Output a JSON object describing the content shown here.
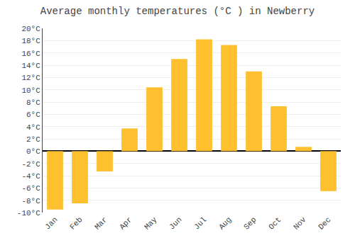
{
  "chart_data": {
    "type": "bar",
    "title": "Average monthly temperatures (°C ) in Newberry",
    "categories": [
      "Jan",
      "Feb",
      "Mar",
      "Apr",
      "May",
      "Jun",
      "Jul",
      "Aug",
      "Sep",
      "Oct",
      "Nov",
      "Dec"
    ],
    "values": [
      -9.5,
      -8.5,
      -3.3,
      3.7,
      10.4,
      15.0,
      18.2,
      17.3,
      13.0,
      7.3,
      0.7,
      -6.5
    ],
    "color": "#FFC030",
    "ylim": [
      -10,
      20
    ],
    "yticks": [
      {
        "value": -10,
        "label": "-10°C"
      },
      {
        "value": -8,
        "label": "-8°C"
      },
      {
        "value": -6,
        "label": "-6°C"
      },
      {
        "value": -4,
        "label": "-4°C"
      },
      {
        "value": -2,
        "label": "-2°C"
      },
      {
        "value": 0,
        "label": "0°C"
      },
      {
        "value": 2,
        "label": "2°C"
      },
      {
        "value": 4,
        "label": "4°C"
      },
      {
        "value": 6,
        "label": "6°C"
      },
      {
        "value": 8,
        "label": "8°C"
      },
      {
        "value": 10,
        "label": "10°C"
      },
      {
        "value": 12,
        "label": "12°C"
      },
      {
        "value": 14,
        "label": "14°C"
      },
      {
        "value": 16,
        "label": "16°C"
      },
      {
        "value": 18,
        "label": "18°C"
      },
      {
        "value": 20,
        "label": "20°C"
      }
    ],
    "grid": true
  }
}
